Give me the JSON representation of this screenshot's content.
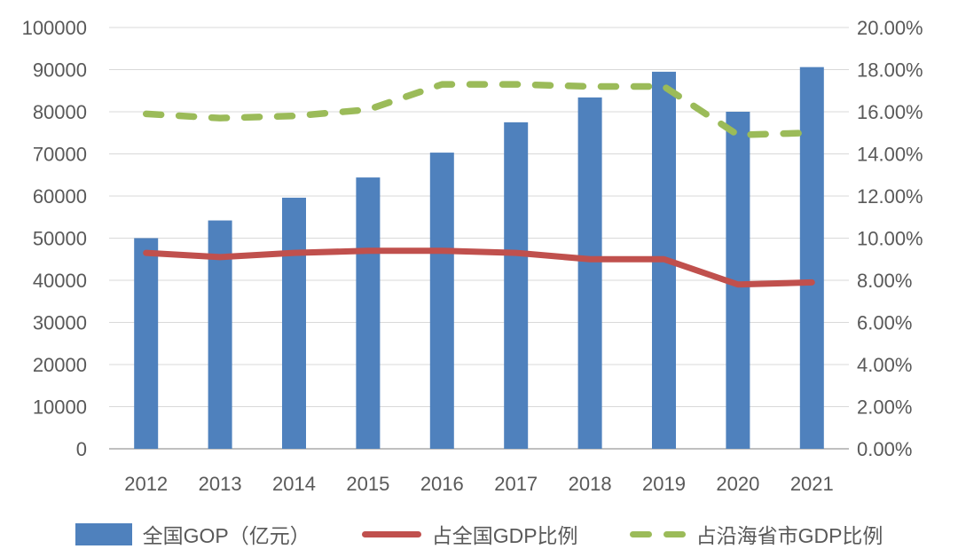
{
  "chart_data": {
    "type": "bar",
    "categories": [
      "2012",
      "2013",
      "2014",
      "2015",
      "2016",
      "2017",
      "2018",
      "2019",
      "2020",
      "2021"
    ],
    "series": [
      {
        "name": "全国GOP（亿元）",
        "type": "bar",
        "axis": "left",
        "color": "#4F81BD",
        "values": [
          50000,
          54200,
          59600,
          64400,
          70300,
          77500,
          83400,
          89500,
          80000,
          90600
        ]
      },
      {
        "name": "占全国GDP比例",
        "type": "line",
        "line_style": "solid",
        "axis": "right",
        "color": "#C0504D",
        "values": [
          9.3,
          9.1,
          9.3,
          9.4,
          9.4,
          9.3,
          9.0,
          9.0,
          7.8,
          7.9
        ]
      },
      {
        "name": "占沿海省市GDP比例",
        "type": "line",
        "line_style": "dashed",
        "axis": "right",
        "color": "#9BBB59",
        "values": [
          15.9,
          15.7,
          15.8,
          16.1,
          17.3,
          17.3,
          17.2,
          17.2,
          14.9,
          15.0
        ]
      }
    ],
    "left_axis": {
      "min": 0,
      "max": 100000,
      "step": 10000,
      "tick_labels": [
        "0",
        "10000",
        "20000",
        "30000",
        "40000",
        "50000",
        "60000",
        "70000",
        "80000",
        "90000",
        "100000"
      ]
    },
    "right_axis": {
      "min": 0,
      "max": 20,
      "step": 2,
      "tick_labels": [
        "0.00%",
        "2.00%",
        "4.00%",
        "6.00%",
        "8.00%",
        "10.00%",
        "12.00%",
        "14.00%",
        "16.00%",
        "18.00%",
        "20.00%"
      ]
    },
    "grid": true,
    "legend_position": "bottom",
    "background": "#FFFFFF",
    "text_color": "#595959",
    "gridline_color": "#D9D9D9"
  }
}
